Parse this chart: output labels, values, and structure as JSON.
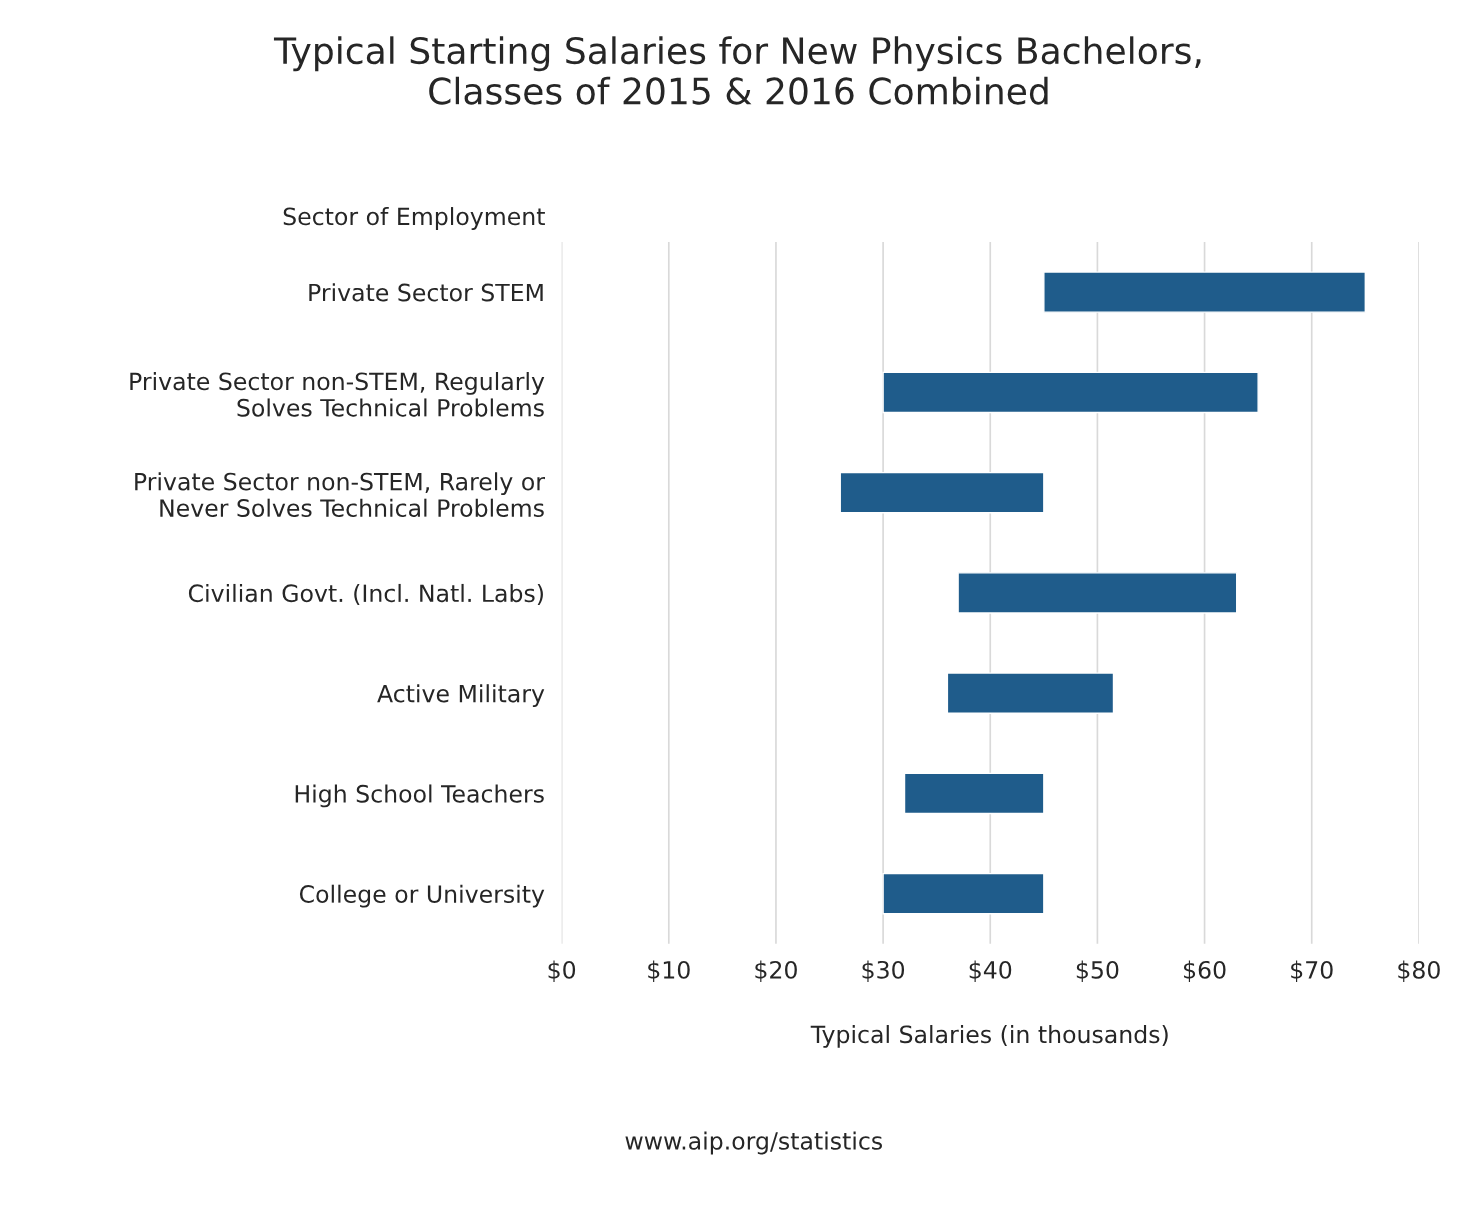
{
  "chart_data": {
    "type": "bar",
    "orientation": "horizontal",
    "title": "Typical Starting Salaries for New Physics Bachelors,\nClasses of 2015 & 2016 Combined",
    "ylabel": "Sector of Employment",
    "xlabel": "Typical Salaries (in thousands)",
    "categories": [
      "Private Sector STEM",
      "Private Sector non-STEM, Regularly\nSolves Technical Problems",
      "Private Sector non-STEM, Rarely or\nNever Solves Technical Problems",
      "Civilian Govt. (Incl. Natl. Labs)",
      "Active Military",
      "High School Teachers",
      "College or University"
    ],
    "base": [
      45,
      30,
      26,
      37,
      36,
      32,
      30
    ],
    "values": [
      30,
      35,
      19,
      26,
      15.5,
      13,
      15
    ],
    "color": "#1f5c8b",
    "xlim": [
      0,
      80
    ],
    "xticks": [
      {
        "value": 0,
        "label": "$0"
      },
      {
        "value": 10,
        "label": "$10"
      },
      {
        "value": 20,
        "label": "$20"
      },
      {
        "value": 30,
        "label": "$30"
      },
      {
        "value": 40,
        "label": "$40"
      },
      {
        "value": 50,
        "label": "$50"
      },
      {
        "value": 60,
        "label": "$60"
      },
      {
        "value": 70,
        "label": "$70"
      },
      {
        "value": 80,
        "label": "$80"
      }
    ],
    "grid": "x",
    "annotations": [
      "www.aip.org/statistics"
    ]
  }
}
